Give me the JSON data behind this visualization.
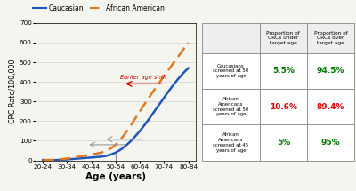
{
  "age_labels": [
    "20-24",
    "30-34",
    "40-44",
    "50-54",
    "60-64",
    "70-74",
    "80-84"
  ],
  "caucasian_rates": [
    2,
    5,
    15,
    40,
    150,
    320,
    470
  ],
  "aa_rates": [
    3,
    10,
    30,
    80,
    250,
    430,
    600
  ],
  "caucasian_color": "#2255bb",
  "aa_color": "#e07820",
  "ylabel": "CRC Rate/100,000",
  "xlabel": "Age (years)",
  "ylim": [
    0,
    700
  ],
  "yticks": [
    0,
    100,
    200,
    300,
    400,
    500,
    600,
    700
  ],
  "legend_caucasian": "Caucasian",
  "legend_aa": "African American",
  "table_header_col1": "Proportion of\nCRCs under\ntarget age",
  "table_header_col2": "Proportion of\nCRCs over\ntarget age",
  "table_rows": [
    {
      "label": "Caucasians\nscreened at 50\nyears of age",
      "val1": "5.5%",
      "val2": "94.5%",
      "color1": "#007700",
      "color2": "#007700"
    },
    {
      "label": "African\nAmericans\nscreened at 50\nyears of age",
      "val1": "10.6%",
      "val2": "89.4%",
      "color1": "#dd0000",
      "color2": "#dd0000"
    },
    {
      "label": "African\nAmericans\nscreened at 45\nyears of age",
      "val1": "5%",
      "val2": "95%",
      "color1": "#007700",
      "color2": "#007700"
    }
  ],
  "arrow_text": "Earlier age shift",
  "arrow_color": "#cc0000",
  "double_arrow_color": "#999999",
  "bg_color": "#f5f5f0"
}
